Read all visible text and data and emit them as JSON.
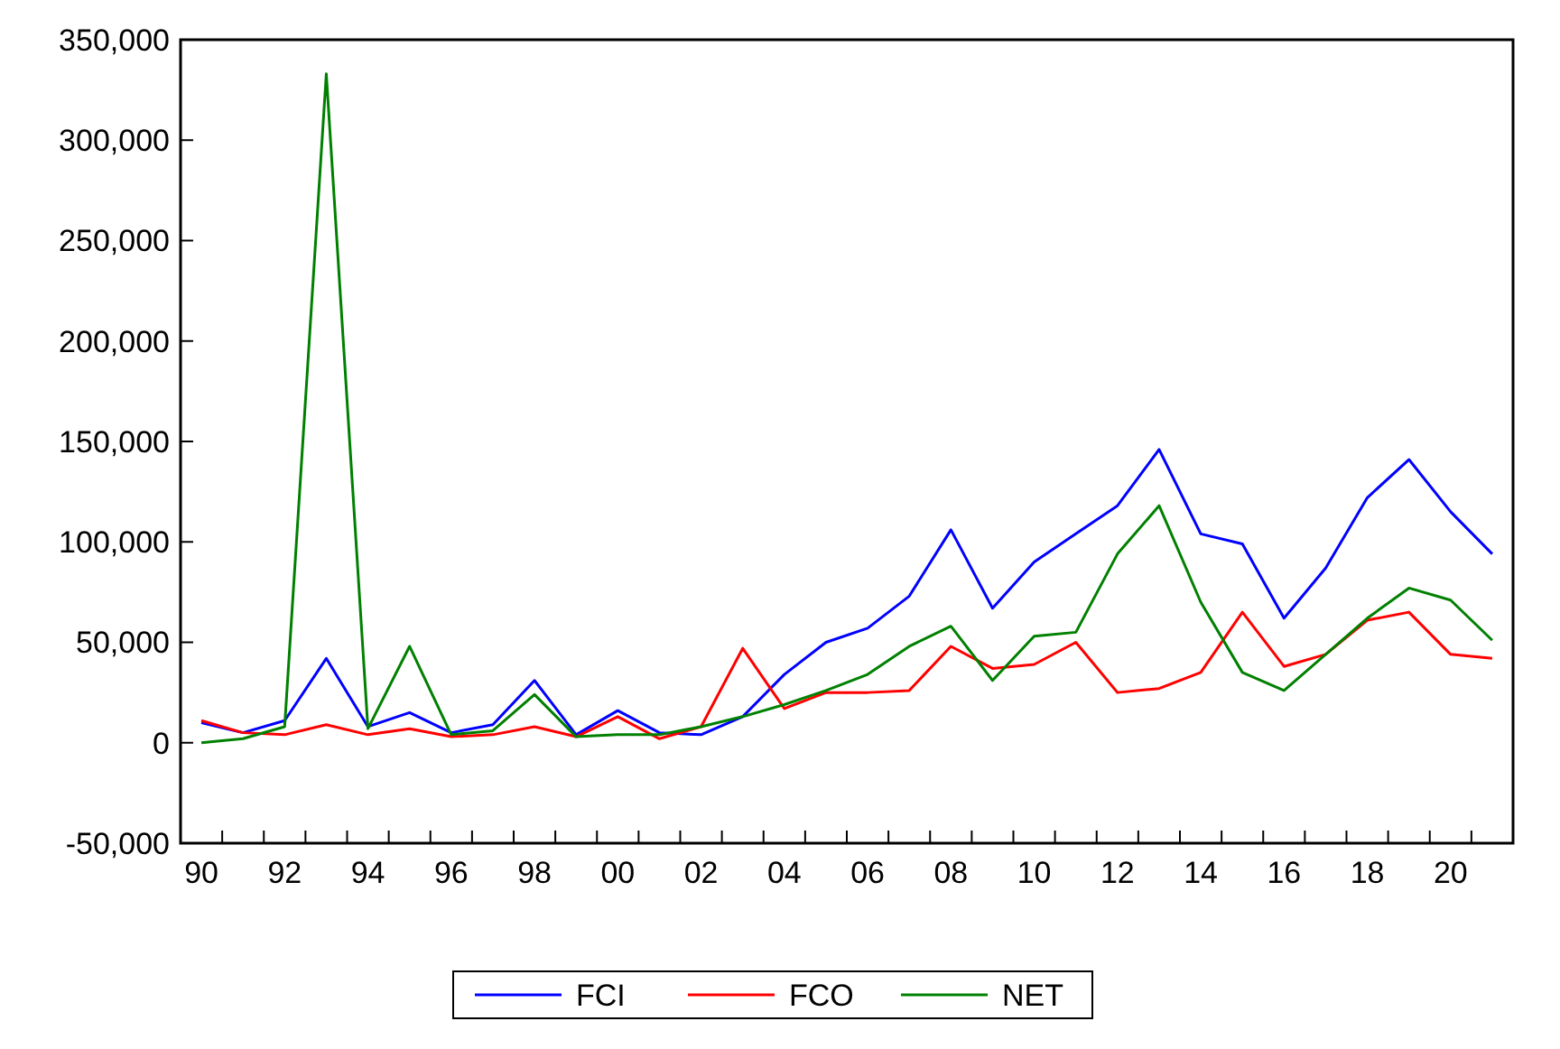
{
  "chart_data": {
    "type": "line",
    "categories": [
      "90",
      null,
      "92",
      null,
      "94",
      null,
      "96",
      null,
      "98",
      null,
      "00",
      null,
      "02",
      null,
      "04",
      null,
      "06",
      null,
      "08",
      null,
      "10",
      null,
      "12",
      null,
      "14",
      null,
      "16",
      null,
      "18",
      null,
      "20",
      null
    ],
    "ylim": [
      -50000,
      350000
    ],
    "yticks": [
      {
        "value": -50000,
        "label": "-50,000"
      },
      0,
      {
        "value": 50000,
        "label": "50,000"
      },
      {
        "value": 100000,
        "label": "100,000"
      },
      {
        "value": 150000,
        "label": "150,000"
      },
      {
        "value": 200000,
        "label": "200,000"
      },
      {
        "value": 250000,
        "label": "250,000"
      },
      {
        "value": 300000,
        "label": "300,000"
      },
      {
        "value": 350000,
        "label": "350,000"
      }
    ],
    "legend": "bottom",
    "grid": false,
    "series": [
      {
        "name": "FCI",
        "color": "#0000ff",
        "values": [
          10000,
          5000,
          11000,
          42000,
          8000,
          15000,
          5000,
          9000,
          31000,
          4000,
          16000,
          5000,
          4000,
          13000,
          34000,
          50000,
          57000,
          73000,
          106000,
          67000,
          90000,
          104000,
          118000,
          146000,
          104000,
          99000,
          62000,
          87000,
          122000,
          141000,
          115000,
          94000
        ]
      },
      {
        "name": "FCO",
        "color": "#ff0000",
        "values": [
          11000,
          5000,
          4000,
          9000,
          4000,
          7000,
          3000,
          4000,
          8000,
          3000,
          13000,
          2000,
          8000,
          47000,
          17000,
          25000,
          25000,
          26000,
          48000,
          37000,
          39000,
          50000,
          25000,
          27000,
          35000,
          65000,
          38000,
          44000,
          61000,
          65000,
          44000,
          42000
        ]
      },
      {
        "name": "NET",
        "color": "#008000",
        "values": [
          0,
          2000,
          8000,
          333000,
          7000,
          48000,
          4000,
          6000,
          24000,
          3000,
          4000,
          4000,
          8000,
          13000,
          19000,
          26000,
          34000,
          48000,
          58000,
          31000,
          53000,
          55000,
          94000,
          118000,
          70000,
          35000,
          26000,
          44000,
          62000,
          77000,
          71000,
          51000
        ]
      }
    ]
  }
}
